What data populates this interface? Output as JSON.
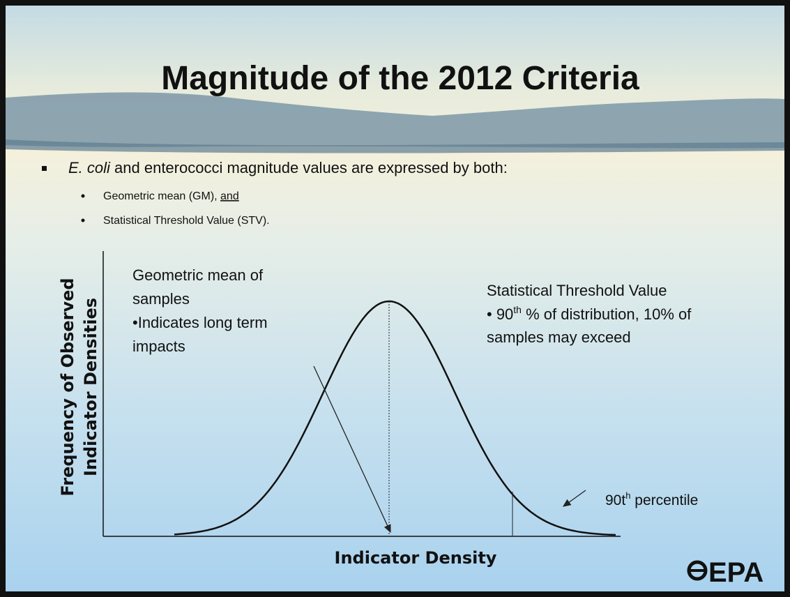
{
  "header": {
    "title": "Magnitude of the 2012 Criteria"
  },
  "bullets": {
    "main": {
      "italic": "E. coli",
      "rest": " and enterococci magnitude values are expressed by both:"
    },
    "sub": [
      {
        "text": "Geometric mean (GM), ",
        "underlined": "and"
      },
      {
        "text": "Statistical Threshold Value (STV)."
      }
    ]
  },
  "diagram": {
    "y_axis_label": [
      "Frequency of  Observed",
      "Indicator Densities"
    ],
    "x_axis_label": "Indicator Density",
    "gm_note": [
      "Geometric mean of",
      "samples",
      "•Indicates long term",
      "impacts"
    ],
    "stv_note": {
      "title": "Statistical Threshold Value",
      "bullet": "•  90",
      "sup": "th",
      "rest": " % of distribution, 10% of",
      "line3": "samples may exceed"
    },
    "percentile_note": {
      "pre": "90t",
      "sup": "h",
      "post": " percentile"
    }
  },
  "logo": "EPA"
}
